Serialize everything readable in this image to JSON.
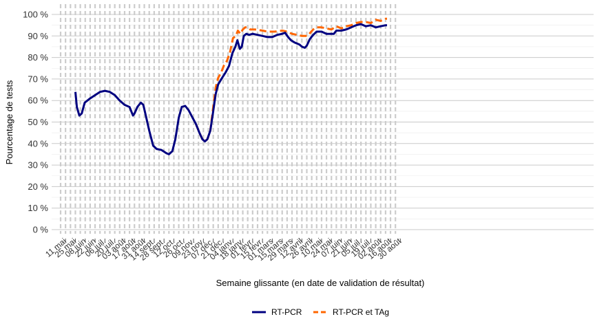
{
  "chart_data": {
    "type": "line",
    "xlabel": "Semaine glissante (en date de validation de résultat)",
    "ylabel": "Pourcentage de tests",
    "ylim": [
      0,
      100
    ],
    "y_ticks": [
      "0 %",
      "10 %",
      "20 %",
      "30 %",
      "40 %",
      "50 %",
      "60 %",
      "70 %",
      "80 %",
      "90 %",
      "100 %"
    ],
    "x_tick_labels": [
      "11 mai",
      "25 mai",
      "08 juin",
      "22 juin",
      "06 juil.",
      "20 juil.",
      "03 août",
      "17 août",
      "31 août",
      "14 sept.",
      "28 sept.",
      "12 oct.",
      "26 oct.",
      "09 nov.",
      "23 nov.",
      "07 déc.",
      "21 déc.",
      "04 janv.",
      "18 janv.",
      "01 févr.",
      "15 févr.",
      "01 mars",
      "15 mars",
      "29 mars",
      "12 avril",
      "26 avril",
      "10 mai",
      "24 mai",
      "07 juin",
      "21 juin",
      "05 juil.",
      "19 juil.",
      "02 août",
      "16 août",
      "30 août"
    ],
    "grid": true,
    "legend_position": "bottom",
    "series": [
      {
        "name": "RT-PCR",
        "color": "#000080",
        "style": "solid",
        "points": [
          [
            3,
            64
          ],
          [
            3.3,
            57
          ],
          [
            3.8,
            53
          ],
          [
            4.3,
            54
          ],
          [
            4.9,
            59
          ],
          [
            6,
            61
          ],
          [
            7,
            62.5
          ],
          [
            8,
            64
          ],
          [
            9,
            64.5
          ],
          [
            10,
            64
          ],
          [
            11,
            62.5
          ],
          [
            12,
            60
          ],
          [
            13,
            58
          ],
          [
            14,
            57
          ],
          [
            14.7,
            53
          ],
          [
            15,
            54
          ],
          [
            15.6,
            57
          ],
          [
            16.3,
            59
          ],
          [
            16.8,
            58
          ],
          [
            17.3,
            53
          ],
          [
            18,
            46
          ],
          [
            18.8,
            39
          ],
          [
            19.5,
            37.5
          ],
          [
            20.5,
            37
          ],
          [
            21.5,
            35.5
          ],
          [
            22,
            35
          ],
          [
            22.7,
            36.5
          ],
          [
            23.3,
            42
          ],
          [
            24,
            52
          ],
          [
            24.6,
            57
          ],
          [
            25.3,
            57.5
          ],
          [
            26,
            55.5
          ],
          [
            26.8,
            52
          ],
          [
            27.5,
            49
          ],
          [
            28.2,
            45
          ],
          [
            28.8,
            42
          ],
          [
            29.3,
            41
          ],
          [
            29.8,
            42
          ],
          [
            30.4,
            46
          ],
          [
            31,
            55
          ],
          [
            31.5,
            63
          ],
          [
            32,
            67.5
          ],
          [
            32.8,
            70.5
          ],
          [
            33.5,
            73
          ],
          [
            34.2,
            76
          ],
          [
            34.9,
            82
          ],
          [
            35.5,
            85
          ],
          [
            35.9,
            88
          ],
          [
            36.4,
            84
          ],
          [
            36.8,
            85
          ],
          [
            37.2,
            90
          ],
          [
            37.7,
            91
          ],
          [
            38.3,
            90.5
          ],
          [
            39,
            91
          ],
          [
            40,
            90.5
          ],
          [
            41,
            90
          ],
          [
            42,
            89.5
          ],
          [
            43,
            89.5
          ],
          [
            44,
            90.5
          ],
          [
            45,
            91
          ],
          [
            45.6,
            91.5
          ],
          [
            46.2,
            89.5
          ],
          [
            46.8,
            88
          ],
          [
            47.5,
            87
          ],
          [
            48.5,
            86
          ],
          [
            49,
            85
          ],
          [
            49.6,
            84.5
          ],
          [
            50,
            85.5
          ],
          [
            50.6,
            88.5
          ],
          [
            51.3,
            90.5
          ],
          [
            52,
            92
          ],
          [
            53,
            92
          ],
          [
            54,
            91
          ],
          [
            55,
            91
          ],
          [
            55.5,
            91
          ],
          [
            56,
            92.5
          ],
          [
            57,
            92.5
          ],
          [
            58,
            93
          ],
          [
            59,
            94
          ],
          [
            60,
            95
          ],
          [
            61,
            95.5
          ],
          [
            62,
            94.5
          ],
          [
            63,
            95
          ],
          [
            64,
            94
          ],
          [
            65,
            94.5
          ],
          [
            66,
            95
          ],
          [
            66.3,
            95
          ]
        ]
      },
      {
        "name": "RT-PCR et TAg",
        "color": "#ff6600",
        "style": "dashed",
        "points": [
          [
            27.5,
            49
          ],
          [
            28.2,
            45
          ],
          [
            28.8,
            42
          ],
          [
            29.3,
            41
          ],
          [
            29.8,
            42
          ],
          [
            30.4,
            46
          ],
          [
            31,
            57
          ],
          [
            31.5,
            66
          ],
          [
            32,
            70.5
          ],
          [
            32.6,
            73
          ],
          [
            33.2,
            76.5
          ],
          [
            33.8,
            78.5
          ],
          [
            34.4,
            82.5
          ],
          [
            35,
            89
          ],
          [
            35.6,
            90
          ],
          [
            36,
            92.5
          ],
          [
            36.5,
            91
          ],
          [
            37,
            93
          ],
          [
            37.5,
            94
          ],
          [
            38,
            94
          ],
          [
            38.5,
            93
          ],
          [
            39.5,
            93
          ],
          [
            41,
            92.5
          ],
          [
            42,
            92
          ],
          [
            43.5,
            92
          ],
          [
            45,
            92.5
          ],
          [
            46,
            92
          ],
          [
            47,
            91
          ],
          [
            48,
            90.5
          ],
          [
            49,
            90
          ],
          [
            50,
            90
          ],
          [
            50.5,
            91
          ],
          [
            51.3,
            93
          ],
          [
            52,
            94
          ],
          [
            53,
            94
          ],
          [
            54,
            93.5
          ],
          [
            55,
            93
          ],
          [
            56,
            94.5
          ],
          [
            57,
            93.5
          ],
          [
            58,
            94.5
          ],
          [
            59,
            95
          ],
          [
            60,
            96
          ],
          [
            61,
            96.5
          ],
          [
            62,
            96.5
          ],
          [
            63,
            96
          ],
          [
            64,
            97.5
          ],
          [
            65,
            97
          ],
          [
            66,
            98
          ],
          [
            66.3,
            98
          ]
        ]
      }
    ]
  }
}
